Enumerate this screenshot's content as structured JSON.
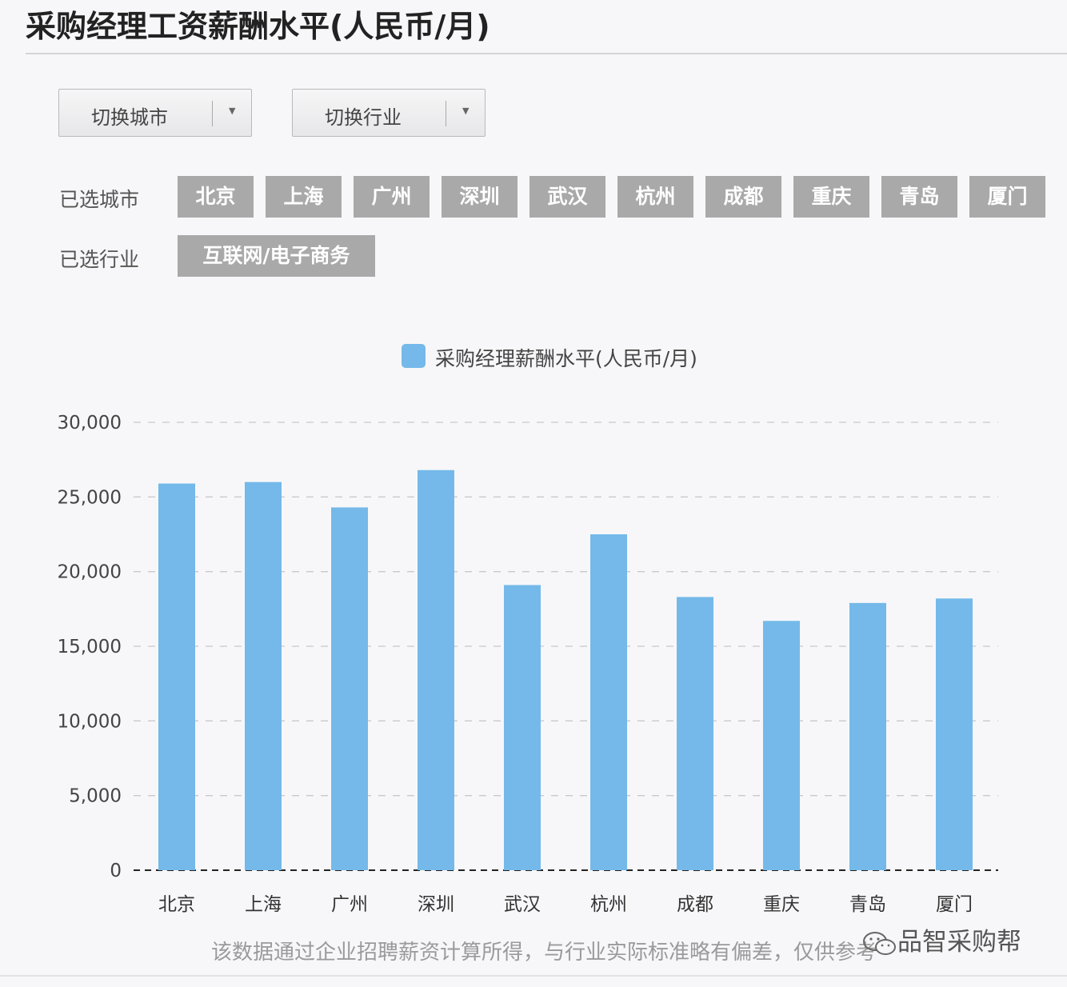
{
  "page_title": "采购经理工资薪酬水平(人民币/月)",
  "filters": {
    "city_dropdown_label": "切换城市",
    "industry_dropdown_label": "切换行业",
    "selected_cities_label": "已选城市",
    "selected_industry_label": "已选行业",
    "selected_cities": [
      "北京",
      "上海",
      "广州",
      "深圳",
      "武汉",
      "杭州",
      "成都",
      "重庆",
      "青岛",
      "厦门"
    ],
    "selected_industries": [
      "互联网/电子商务"
    ]
  },
  "chart_data": {
    "type": "bar",
    "title": "",
    "xlabel": "",
    "ylabel": "",
    "categories": [
      "北京",
      "上海",
      "广州",
      "深圳",
      "武汉",
      "杭州",
      "成都",
      "重庆",
      "青岛",
      "厦门"
    ],
    "series": [
      {
        "name": "采购经理薪酬水平(人民币/月)",
        "values": [
          25900,
          26000,
          24300,
          26800,
          19100,
          22500,
          18300,
          16700,
          17900,
          18200
        ],
        "color": "#74b9e9"
      }
    ],
    "ylim": [
      0,
      30000
    ],
    "yticks": [
      "0",
      "5,000",
      "10,000",
      "15,000",
      "20,000",
      "25,000",
      "30,000"
    ],
    "grid": "dashed horizontal",
    "legend": "top-center"
  },
  "footnote": "该数据通过企业招聘薪资计算所得，与行业实际标准略有偏差，仅供参考",
  "watermark": "品智采购帮"
}
